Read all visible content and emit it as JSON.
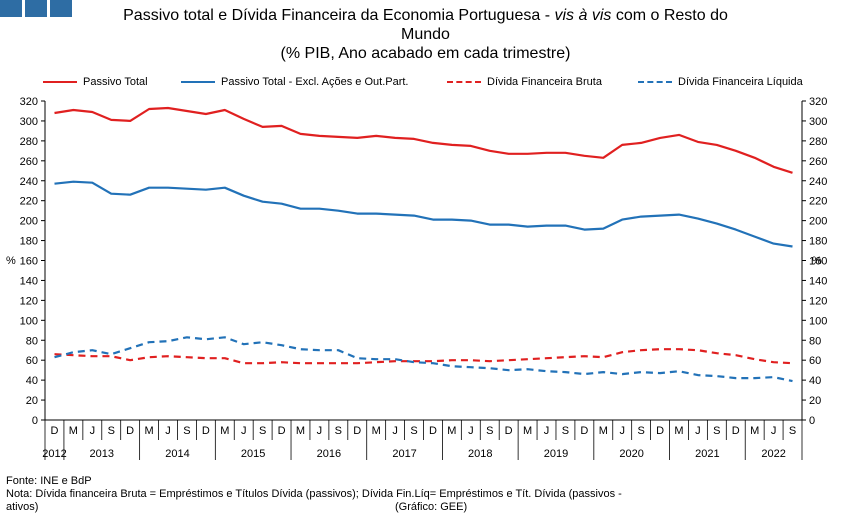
{
  "title": {
    "line1_a": "Passivo total e Dívida Financeira da Economia Portuguesa - ",
    "line1_em": "vis à vis",
    "line1_b": " com o Resto do",
    "line2": "Mundo",
    "line3": "(% PIB, Ano acabado em cada trimestre)"
  },
  "axis": {
    "left_unit": "%",
    "right_unit": "%"
  },
  "footer": {
    "source": "Fonte: INE e BdP",
    "note_line1": "Nota: Dívida financeira Bruta = Empréstimos e Títulos Dívida (passivos); Dívida Fin.Líq= Empréstimos e Tít. Dívida (passivos -",
    "note_line2": "ativos)",
    "credit": "(Gráfico: GEE)"
  },
  "colors": {
    "red": "#e02020",
    "blue": "#2272b8",
    "logo": "#2e6da4"
  },
  "chart_data": {
    "type": "line",
    "title": "Passivo total e Dívida Financeira da Economia Portuguesa - vis à vis com o Resto do Mundo (% PIB, Ano acabado em cada trimestre)",
    "ylabel": "%",
    "ylim": [
      0,
      320
    ],
    "yticks": [
      0,
      20,
      40,
      60,
      80,
      100,
      120,
      140,
      160,
      180,
      200,
      220,
      240,
      260,
      280,
      300,
      320
    ],
    "grid": false,
    "legend": "top",
    "quarter_labels": [
      "D",
      "M",
      "J",
      "S",
      "D",
      "M",
      "J",
      "S",
      "D",
      "M",
      "J",
      "S",
      "D",
      "M",
      "J",
      "S",
      "D",
      "M",
      "J",
      "S",
      "D",
      "M",
      "J",
      "S",
      "D",
      "M",
      "J",
      "S",
      "D",
      "M",
      "J",
      "S",
      "D",
      "M",
      "J",
      "S",
      "D",
      "M",
      "J",
      "S"
    ],
    "years": [
      {
        "label": "2012",
        "start": 0,
        "end": 0
      },
      {
        "label": "2013",
        "start": 1,
        "end": 4
      },
      {
        "label": "2014",
        "start": 5,
        "end": 8
      },
      {
        "label": "2015",
        "start": 9,
        "end": 12
      },
      {
        "label": "2016",
        "start": 13,
        "end": 16
      },
      {
        "label": "2017",
        "start": 17,
        "end": 20
      },
      {
        "label": "2018",
        "start": 21,
        "end": 24
      },
      {
        "label": "2019",
        "start": 25,
        "end": 28
      },
      {
        "label": "2020",
        "start": 29,
        "end": 32
      },
      {
        "label": "2021",
        "start": 33,
        "end": 36
      },
      {
        "label": "2022",
        "start": 37,
        "end": 39
      }
    ],
    "series": [
      {
        "name": "Passivo Total",
        "color": "#e02020",
        "dash": false,
        "values": [
          308,
          311,
          309,
          301,
          300,
          312,
          313,
          310,
          307,
          311,
          302,
          294,
          295,
          287,
          285,
          284,
          283,
          285,
          283,
          282,
          278,
          276,
          275,
          270,
          267,
          267,
          268,
          268,
          265,
          263,
          276,
          278,
          283,
          286,
          279,
          276,
          270,
          263,
          254,
          248
        ]
      },
      {
        "name": "Passivo Total - Excl. Ações e Out.Part.",
        "color": "#2272b8",
        "dash": false,
        "values": [
          237,
          239,
          238,
          227,
          226,
          233,
          233,
          232,
          231,
          233,
          225,
          219,
          217,
          212,
          212,
          210,
          207,
          207,
          206,
          205,
          201,
          201,
          200,
          196,
          196,
          194,
          195,
          195,
          191,
          192,
          201,
          204,
          205,
          206,
          202,
          197,
          191,
          184,
          177,
          174
        ]
      },
      {
        "name": "Dívida Financeira Bruta",
        "color": "#e02020",
        "dash": true,
        "values": [
          66,
          65,
          64,
          64,
          60,
          63,
          64,
          63,
          62,
          62,
          57,
          57,
          58,
          57,
          57,
          57,
          57,
          58,
          59,
          59,
          59,
          60,
          60,
          59,
          60,
          61,
          62,
          63,
          64,
          63,
          68,
          70,
          71,
          71,
          70,
          67,
          65,
          61,
          58,
          57
        ]
      },
      {
        "name": "Dívida Financeira Líquida",
        "color": "#2272b8",
        "dash": true,
        "values": [
          63,
          68,
          70,
          66,
          72,
          78,
          79,
          83,
          81,
          83,
          76,
          78,
          75,
          71,
          70,
          70,
          62,
          61,
          61,
          58,
          57,
          54,
          53,
          52,
          50,
          51,
          49,
          48,
          46,
          48,
          46,
          48,
          47,
          49,
          45,
          44,
          42,
          42,
          43,
          39
        ]
      }
    ]
  }
}
